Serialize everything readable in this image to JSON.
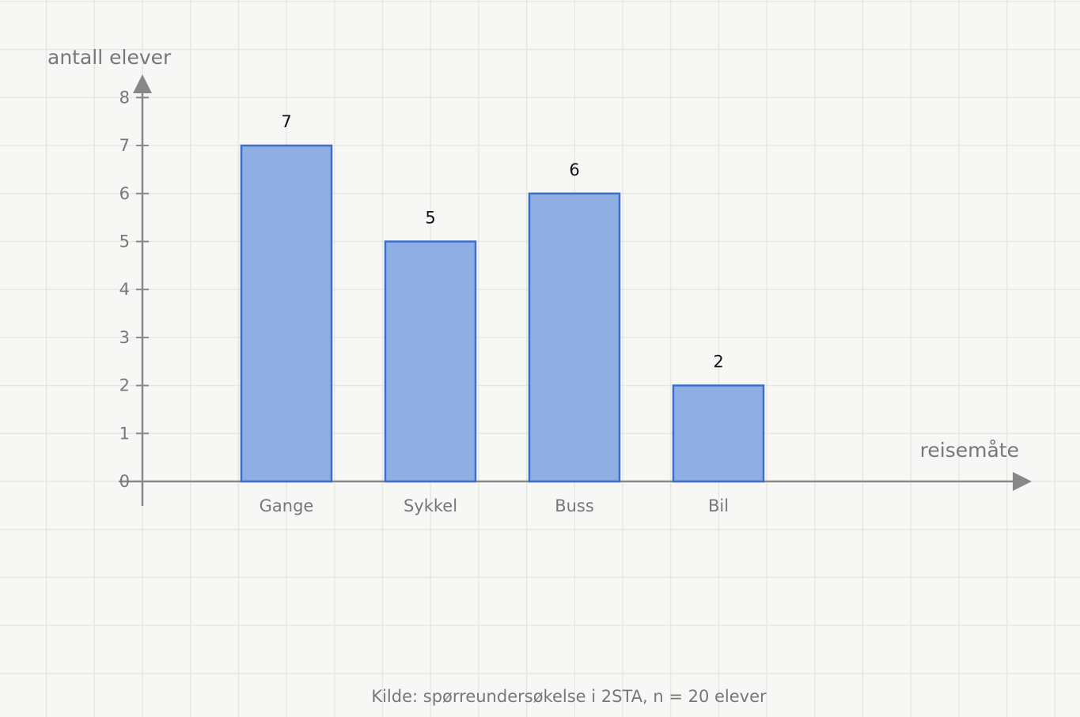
{
  "chart_data": {
    "type": "bar",
    "y_label": "antall elever",
    "x_label": "reisemåte",
    "note": "Kilde: spørreundersøkelse i 2STA, n = 20 elever",
    "categories": [
      "Gange",
      "Sykkel",
      "Buss",
      "Bil"
    ],
    "values": [
      7,
      5,
      6,
      2
    ],
    "color": "#89abe3",
    "edge_color": "#3a6fcc",
    "ylim": [
      0,
      8
    ],
    "yticks": [
      0,
      1,
      2,
      3,
      4,
      5,
      6,
      7,
      8
    ],
    "grid": true
  }
}
